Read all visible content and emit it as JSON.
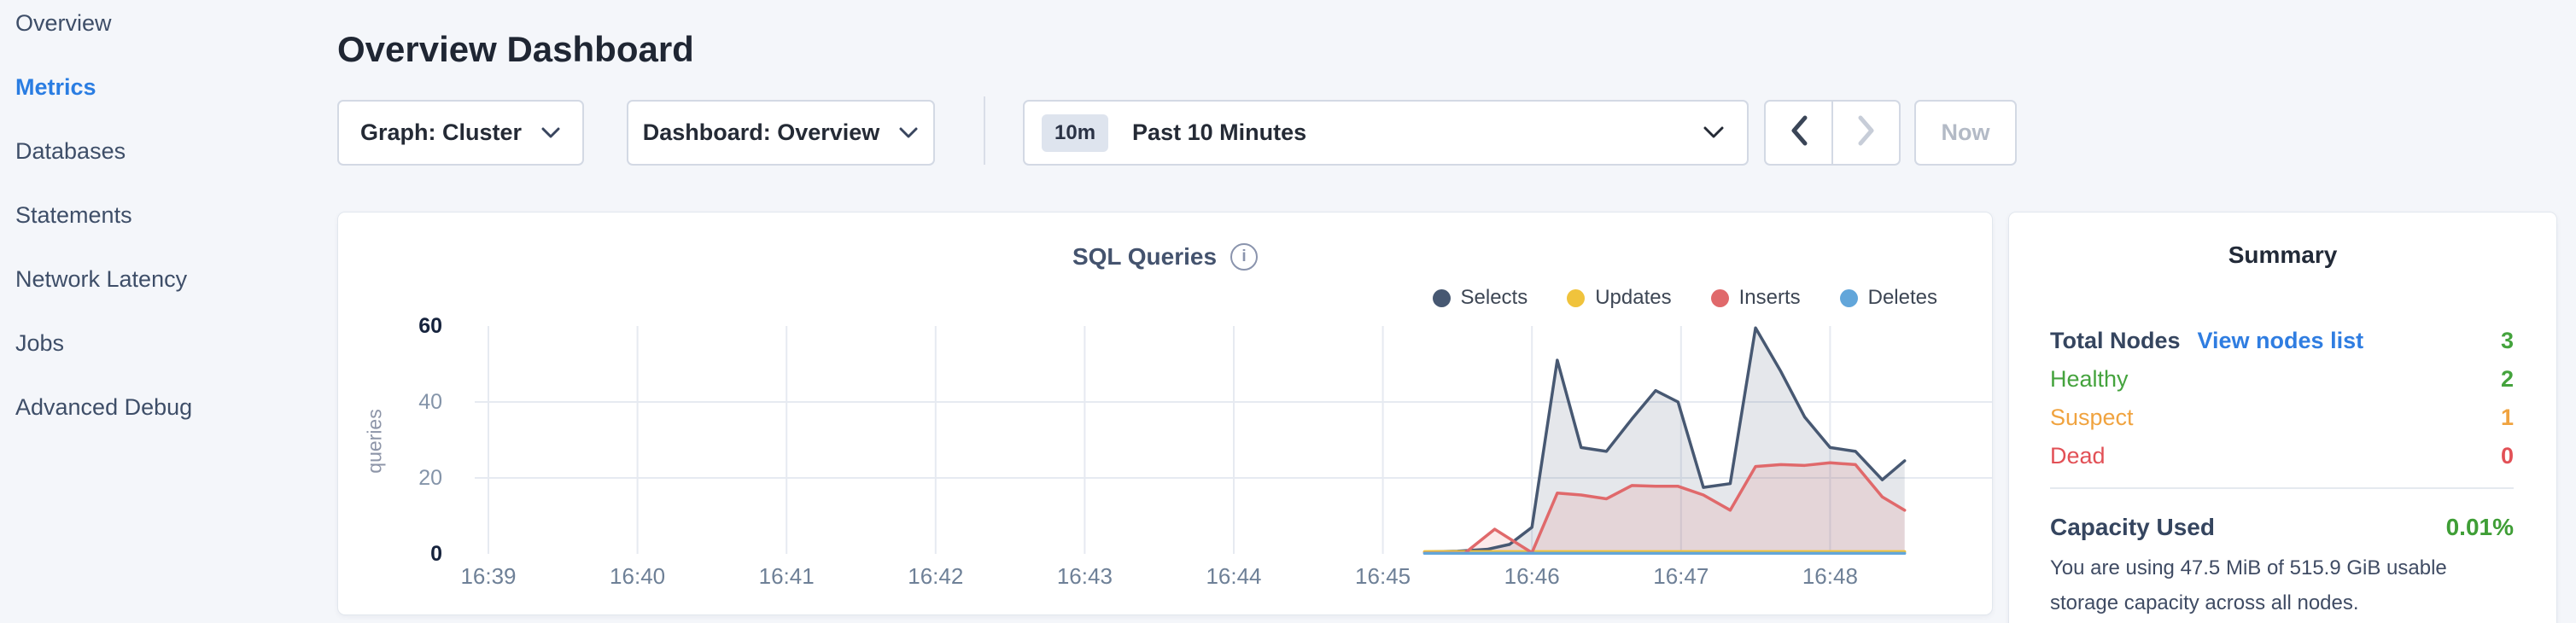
{
  "colors": {
    "accent_blue": "#2a7de2",
    "link_blue": "#2f7de1",
    "green": "#44a33d",
    "orange": "#f0a33f",
    "red": "#e25056",
    "selects": "#475872",
    "updates": "#f0c33c",
    "inserts": "#e0696b",
    "deletes": "#62a6da"
  },
  "sidebar": {
    "items": [
      {
        "label": "Overview",
        "active": false
      },
      {
        "label": "Metrics",
        "active": true
      },
      {
        "label": "Databases",
        "active": false
      },
      {
        "label": "Statements",
        "active": false
      },
      {
        "label": "Network Latency",
        "active": false
      },
      {
        "label": "Jobs",
        "active": false
      },
      {
        "label": "Advanced Debug",
        "active": false
      }
    ]
  },
  "header": {
    "title": "Overview Dashboard"
  },
  "controls": {
    "graph_dropdown": {
      "label": "Graph: Cluster"
    },
    "dashboard_dropdown": {
      "label": "Dashboard: Overview"
    },
    "time_selector": {
      "badge": "10m",
      "label": "Past 10 Minutes"
    },
    "now_label": "Now"
  },
  "chart_data": {
    "type": "line",
    "title": "SQL Queries",
    "ylabel": "queries",
    "ylim": [
      0,
      60
    ],
    "y_ticks": [
      60,
      40,
      20,
      0
    ],
    "x_ticks": [
      "16:39",
      "16:40",
      "16:41",
      "16:42",
      "16:43",
      "16:44",
      "16:45",
      "16:46",
      "16:47",
      "16:48"
    ],
    "x_unit": "minutes after 16:39",
    "grid": true,
    "legend_position": "top-right",
    "series": [
      {
        "name": "Selects",
        "color": "#475872",
        "fill": "rgba(71,88,114,0.14)",
        "points": [
          [
            6.28,
            0.5
          ],
          [
            6.5,
            0.7
          ],
          [
            6.7,
            1.2
          ],
          [
            6.85,
            2.5
          ],
          [
            7.0,
            7
          ],
          [
            7.17,
            51
          ],
          [
            7.33,
            28
          ],
          [
            7.5,
            27
          ],
          [
            7.67,
            35.5
          ],
          [
            7.83,
            43
          ],
          [
            7.98,
            40
          ],
          [
            8.15,
            17.5
          ],
          [
            8.33,
            18.5
          ],
          [
            8.5,
            59.5
          ],
          [
            8.67,
            48
          ],
          [
            8.83,
            36
          ],
          [
            9.0,
            28
          ],
          [
            9.17,
            27
          ],
          [
            9.35,
            19.5
          ],
          [
            9.5,
            24.5
          ]
        ]
      },
      {
        "name": "Updates",
        "color": "#f0c33c",
        "fill": null,
        "points": [
          [
            6.28,
            0.6
          ],
          [
            9.5,
            0.6
          ]
        ]
      },
      {
        "name": "Inserts",
        "color": "#e0696b",
        "fill": "rgba(224,105,107,0.14)",
        "points": [
          [
            6.28,
            0.2
          ],
          [
            6.55,
            0.2
          ],
          [
            6.75,
            6.5
          ],
          [
            7.0,
            0.3
          ],
          [
            7.17,
            16
          ],
          [
            7.33,
            15.5
          ],
          [
            7.5,
            14.5
          ],
          [
            7.67,
            18
          ],
          [
            7.83,
            17.8
          ],
          [
            7.98,
            17.8
          ],
          [
            8.15,
            15.5
          ],
          [
            8.33,
            11.5
          ],
          [
            8.5,
            23
          ],
          [
            8.67,
            23.5
          ],
          [
            8.83,
            23.3
          ],
          [
            9.0,
            24
          ],
          [
            9.17,
            23.5
          ],
          [
            9.35,
            15
          ],
          [
            9.5,
            11.5
          ]
        ]
      },
      {
        "name": "Deletes",
        "color": "#62a6da",
        "fill": null,
        "points": [
          [
            6.28,
            0.15
          ],
          [
            9.5,
            0.15
          ]
        ]
      }
    ]
  },
  "summary": {
    "title": "Summary",
    "rows": [
      {
        "label": "Total Nodes",
        "label_color": "#35455f",
        "bold": true,
        "link": "View nodes list",
        "value": "3",
        "value_color": "#44a33d"
      },
      {
        "label": "Healthy",
        "label_color": "#44a33d",
        "bold": false,
        "link": null,
        "value": "2",
        "value_color": "#44a33d"
      },
      {
        "label": "Suspect",
        "label_color": "#f0a33f",
        "bold": false,
        "link": null,
        "value": "1",
        "value_color": "#f0a33f"
      },
      {
        "label": "Dead",
        "label_color": "#e25056",
        "bold": false,
        "link": null,
        "value": "0",
        "value_color": "#e25056"
      }
    ],
    "capacity": {
      "label": "Capacity Used",
      "value": "0.01%",
      "value_color": "#3f9e36"
    },
    "description": "You are using 47.5 MiB of 515.9 GiB usable storage capacity across all nodes."
  }
}
